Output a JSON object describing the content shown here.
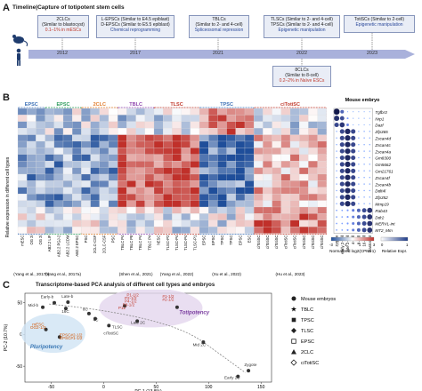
{
  "panel_a": {
    "letter": "A",
    "title": "Timeline|Capture of totipotent stem cells",
    "years": [
      "2012",
      "2017",
      "2021",
      "2022",
      "2023"
    ],
    "boxes": [
      {
        "l1": "2CLCs",
        "l1b": "(Similar to blastocyst)",
        "l2": "0.1–1% in mESCs",
        "l2color": "red"
      },
      {
        "l1": "L-EPSCs (Similar to E4.5 epiblast)",
        "l1b": "D-EPSCs (Similar to E5.5 epiblast)",
        "l2": "Chemical reprogramming",
        "l2color": "blue"
      },
      {
        "l1": "TBLCs",
        "l1b": "(Similar to 2- and 4-cell)",
        "l2": "Spliceosomal repression",
        "l2color": "blue"
      },
      {
        "l1": "TLSCs (Similar to 2- and 4-cell)",
        "l1b": "TPSCs (Similar to 2- and 4-cell)",
        "l2": "Epigenetic manipulation",
        "l2color": "blue"
      },
      {
        "l1": "TotiSCs (Similar to 2-cell)",
        "l1b": "",
        "l2": "Epigenetic manipulation",
        "l2color": "blue"
      },
      {
        "l1": "8CLCs",
        "l1b": "(Similar to 8-cell)",
        "l2": "0.2–2% in Naïve ESCs",
        "l2color": "red"
      }
    ]
  },
  "panel_b": {
    "letter": "B",
    "ylabel": "Relative expression in different cell types",
    "group_labels": [
      {
        "label": "EPSC",
        "color": "#3b6fb5"
      },
      {
        "label": "EPSC",
        "color": "#2a9a5a"
      },
      {
        "label": "2CLC",
        "color": "#e07b2a"
      },
      {
        "label": "TBLC",
        "color": "#8e44ad"
      },
      {
        "label": "TLSC",
        "color": "#c0392b"
      },
      {
        "label": "TPSC",
        "color": "#3b6fb5"
      },
      {
        "label": "ciTotiSC",
        "color": "#c0392b"
      }
    ],
    "embryo_title": "Mouse embryo",
    "genes": [
      "Tgfbr3",
      "Nrp1",
      "Dazl",
      "Zfp365",
      "Zscan4d",
      "Zscan4c",
      "Zscan4a",
      "Gm8300",
      "Gm5662",
      "Gm21761",
      "Zscan4f",
      "Zscan4b",
      "Ddit4l",
      "Zfp352",
      "Mmp19",
      "Rab43",
      "Ddr2",
      "MERVL-int",
      "MT2_Mm"
    ],
    "columns": [
      "mESC",
      "OG 2i",
      "OG 2i",
      "AB2.2 LIF",
      "AB2.2 PGJ-2",
      "AB2.2 LCDM",
      "AB2.2 EPSC",
      "PSC",
      "2CLC-CSF",
      "2CLC-CSF",
      "PSC",
      "TBLC P4",
      "TBLC P8",
      "TBLC P4",
      "TBLC P4",
      "hESC",
      "TLSC-P2",
      "TLSC-P4",
      "TLSC-P4",
      "TLSC-P1",
      "EPSC",
      "EPSC",
      "TPSC",
      "TPSC",
      "EPSC",
      "ESC",
      "ciTotiSC",
      "ciTotiSC",
      "ciTotiSC",
      "ciTotiSC",
      "ciTotiSC",
      "ciTotiSC",
      "ciTotiSC",
      "ciTotiSC"
    ],
    "citations": [
      "(Yang et al., 2017b)",
      "(Yang et al., 2017a)",
      "(Shen et al., 2021)",
      "(Yang et al., 2022)",
      "(Xu et al., 2022)",
      "(Hu et al., 2023)"
    ],
    "stages": [
      "zygote",
      "early 2-cell",
      "late 2-cell",
      "4-cell",
      "8-cell",
      "16-cell",
      "blastocyst"
    ],
    "legend_title": "Normalized log2(CPM+1)",
    "legend_ticks": [
      "-3",
      "-1",
      "1",
      "3"
    ],
    "dot_legend_title": "Relative Expr.",
    "dot_legend_ticks": [
      "0",
      "1"
    ],
    "colors": {
      "low": "#1f4e9a",
      "mid": "#ffffff",
      "high": "#c0302a"
    }
  },
  "panel_c": {
    "letter": "C",
    "title": "Transcriptome-based PCA analysis of different cell types and embryos",
    "chart_data": {
      "type": "scatter",
      "xlabel": "PC-1 (13.8%)",
      "ylabel": "PC-2 (10.7%)",
      "xlim": [
        -75,
        160
      ],
      "ylim": [
        -75,
        65
      ],
      "xticks": [
        "-50",
        "0",
        "50",
        "100",
        "150"
      ],
      "yticks": [
        "50",
        "0",
        "-50"
      ],
      "legend": [
        {
          "name": "Mouse embryos",
          "marker": "circle"
        },
        {
          "name": "TBLC",
          "marker": "star"
        },
        {
          "name": "TPSC",
          "marker": "square"
        },
        {
          "name": "TLSC",
          "marker": "diamond"
        },
        {
          "name": "EPSC",
          "marker": "square-open"
        },
        {
          "name": "2CLC",
          "marker": "triangle"
        },
        {
          "name": "ciTotiSC",
          "marker": "diamond-open"
        }
      ],
      "annotations": [
        "Early-b",
        "Late-b",
        "Mid-b",
        "16C",
        "8C",
        "4C",
        "P1-1/2",
        "#1-1/2",
        "#2-1/2",
        "P2-1/2",
        "P4-1/2",
        "P8-1/2",
        "P12",
        "Late 2C",
        "Mid 2C",
        "Zygote",
        "Early 2C",
        "mESC",
        "OG2-1/2",
        "TLSC",
        "ciTotiSC",
        "EPSC#2-1/2",
        "EPSC#1-1/2",
        "Totipotency",
        "Pluripotency"
      ],
      "points": [
        {
          "label": "Early-b",
          "x": -47,
          "y": 50
        },
        {
          "label": "Late-b",
          "x": -34,
          "y": 51
        },
        {
          "label": "Mid-b",
          "x": -58,
          "y": 43
        },
        {
          "label": "16C",
          "x": -36,
          "y": 41
        },
        {
          "label": "8C",
          "x": -14,
          "y": 33
        },
        {
          "label": "4C",
          "x": -8,
          "y": 25
        },
        {
          "label": "Late 2C",
          "x": 32,
          "y": 21
        },
        {
          "label": "Mid 2C",
          "x": 95,
          "y": -12
        },
        {
          "label": "Zygote",
          "x": 138,
          "y": -57
        },
        {
          "label": "Early 2C",
          "x": 128,
          "y": -66
        },
        {
          "label": "mESC",
          "x": -55,
          "y": 8
        },
        {
          "label": "EPSC",
          "x": -42,
          "y": -4
        },
        {
          "label": "TLSC",
          "x": 5,
          "y": 14
        },
        {
          "label": "TBLC",
          "x": 20,
          "y": 45
        },
        {
          "label": "TPSC",
          "x": 70,
          "y": 43
        }
      ]
    }
  }
}
